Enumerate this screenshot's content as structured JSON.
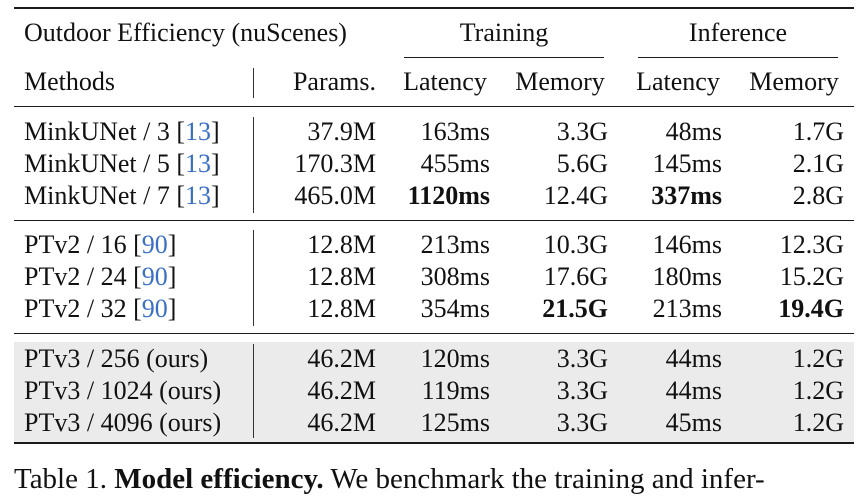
{
  "table": {
    "title": "Outdoor Efficiency (nuScenes)",
    "group_training": "Training",
    "group_inference": "Inference",
    "headers": {
      "methods": "Methods",
      "params": "Params.",
      "train_latency": "Latency",
      "train_memory": "Memory",
      "inf_latency": "Latency",
      "inf_memory": "Memory"
    },
    "groups": [
      {
        "rows": [
          {
            "name": "MinkUNet / 3 [",
            "cite": "13",
            "close": "]",
            "params": "37.9M",
            "train_latency": "163ms",
            "train_memory": "3.3G",
            "inf_latency": "48ms",
            "inf_memory": "1.7G"
          },
          {
            "name": "MinkUNet / 5 [",
            "cite": "13",
            "close": "]",
            "params": "170.3M",
            "train_latency": "455ms",
            "train_memory": "5.6G",
            "inf_latency": "145ms",
            "inf_memory": "2.1G"
          },
          {
            "name": "MinkUNet / 7 [",
            "cite": "13",
            "close": "]",
            "params": "465.0M",
            "train_latency": "1120ms",
            "train_memory": "12.4G",
            "inf_latency": "337ms",
            "inf_memory": "2.8G"
          }
        ]
      },
      {
        "rows": [
          {
            "name": "PTv2 / 16 [",
            "cite": "90",
            "close": "]",
            "params": "12.8M",
            "train_latency": "213ms",
            "train_memory": "10.3G",
            "inf_latency": "146ms",
            "inf_memory": "12.3G"
          },
          {
            "name": "PTv2 / 24 [",
            "cite": "90",
            "close": "]",
            "params": "12.8M",
            "train_latency": "308ms",
            "train_memory": "17.6G",
            "inf_latency": "180ms",
            "inf_memory": "15.2G"
          },
          {
            "name": "PTv2 / 32 [",
            "cite": "90",
            "close": "]",
            "params": "12.8M",
            "train_latency": "354ms",
            "train_memory": "21.5G",
            "inf_latency": "213ms",
            "inf_memory": "19.4G"
          }
        ]
      },
      {
        "rows": [
          {
            "name": "PTv3 / 256 (ours)",
            "cite": "",
            "close": "",
            "params": "46.2M",
            "train_latency": "120ms",
            "train_memory": "3.3G",
            "inf_latency": "44ms",
            "inf_memory": "1.2G"
          },
          {
            "name": "PTv3 / 1024 (ours)",
            "cite": "",
            "close": "",
            "params": "46.2M",
            "train_latency": "119ms",
            "train_memory": "3.3G",
            "inf_latency": "44ms",
            "inf_memory": "1.2G"
          },
          {
            "name": "PTv3 / 4096 (ours)",
            "cite": "",
            "close": "",
            "params": "46.2M",
            "train_latency": "125ms",
            "train_memory": "3.3G",
            "inf_latency": "45ms",
            "inf_memory": "1.2G"
          }
        ]
      }
    ],
    "highlight_color": "#ebebeb",
    "cite_color": "#3a6fc4"
  },
  "caption": {
    "label": "Table 1.",
    "bold": "Model efficiency.",
    "text": " We benchmark the training and infer-"
  }
}
